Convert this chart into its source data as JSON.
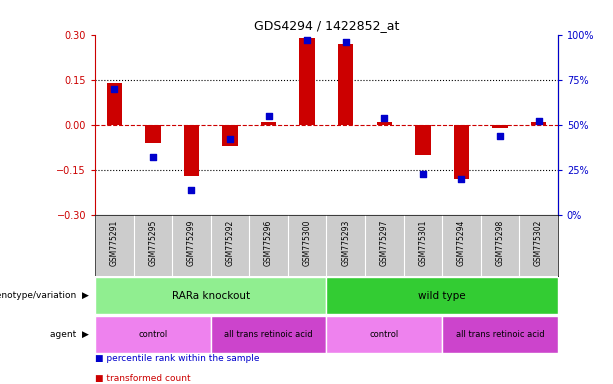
{
  "title": "GDS4294 / 1422852_at",
  "samples": [
    "GSM775291",
    "GSM775295",
    "GSM775299",
    "GSM775292",
    "GSM775296",
    "GSM775300",
    "GSM775293",
    "GSM775297",
    "GSM775301",
    "GSM775294",
    "GSM775298",
    "GSM775302"
  ],
  "bar_values": [
    0.14,
    -0.06,
    -0.17,
    -0.07,
    0.01,
    0.29,
    0.27,
    0.01,
    -0.1,
    -0.18,
    -0.01,
    0.01
  ],
  "dot_values": [
    70,
    32,
    14,
    42,
    55,
    97,
    96,
    54,
    23,
    20,
    44,
    52
  ],
  "bar_color": "#cc0000",
  "dot_color": "#0000cc",
  "left_ylim": [
    -0.3,
    0.3
  ],
  "right_ylim": [
    0,
    100
  ],
  "left_yticks": [
    -0.3,
    -0.15,
    0,
    0.15,
    0.3
  ],
  "right_yticks": [
    0,
    25,
    50,
    75,
    100
  ],
  "right_yticklabels": [
    "0%",
    "25%",
    "50%",
    "75%",
    "100%"
  ],
  "hlines": [
    0.15,
    -0.15
  ],
  "zero_line_color": "#cc0000",
  "genotype_labels": [
    {
      "text": "RARa knockout",
      "start": 0,
      "end": 5,
      "color": "#90ee90"
    },
    {
      "text": "wild type",
      "start": 6,
      "end": 11,
      "color": "#33cc33"
    }
  ],
  "agent_labels": [
    {
      "text": "control",
      "start": 0,
      "end": 2,
      "color": "#ee82ee"
    },
    {
      "text": "all trans retinoic acid",
      "start": 3,
      "end": 5,
      "color": "#cc44cc"
    },
    {
      "text": "control",
      "start": 6,
      "end": 8,
      "color": "#ee82ee"
    },
    {
      "text": "all trans retinoic acid",
      "start": 9,
      "end": 11,
      "color": "#cc44cc"
    }
  ],
  "legend_items": [
    {
      "label": "transformed count",
      "color": "#cc0000"
    },
    {
      "label": "percentile rank within the sample",
      "color": "#0000cc"
    }
  ],
  "bg_color": "#ffffff",
  "tick_area_color": "#cccccc",
  "bar_width": 0.4,
  "dot_size": 18
}
